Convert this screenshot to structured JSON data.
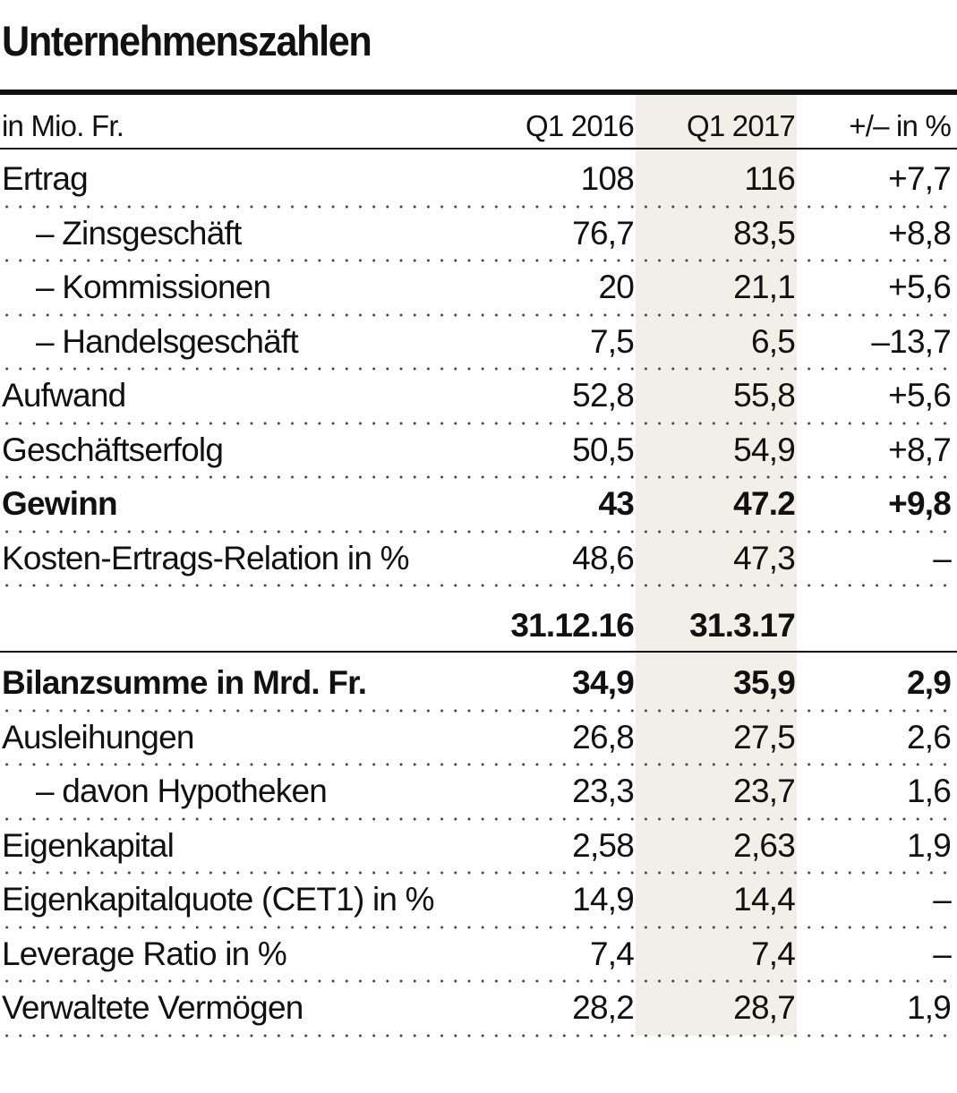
{
  "header": {
    "title": "Unternehmenszahlen"
  },
  "table": {
    "columns": [
      "in Mio. Fr.",
      "Q1 2016",
      "Q1 2017",
      "+/– in %"
    ],
    "rows1": [
      {
        "cells": [
          "Ertrag",
          "108",
          "116",
          "+7,7"
        ]
      },
      {
        "cells": [
          "– Zinsgeschäft",
          "76,7",
          "83,5",
          "+8,8"
        ],
        "indent": true
      },
      {
        "cells": [
          "– Kommissionen",
          "20",
          "21,1",
          "+5,6"
        ],
        "indent": true
      },
      {
        "cells": [
          "– Handelsgeschäft",
          "7,5",
          "6,5",
          "–13,7"
        ],
        "indent": true
      },
      {
        "cells": [
          "Aufwand",
          "52,8",
          "55,8",
          "+5,6"
        ]
      },
      {
        "cells": [
          "Geschäftserfolg",
          "50,5",
          "54,9",
          "+8,7"
        ]
      },
      {
        "cells": [
          "Gewinn",
          "43",
          "47.2",
          "+9,8"
        ],
        "bold": true
      },
      {
        "cells": [
          "Kosten-Ertrags-Relation in %",
          "48,6",
          "47,3",
          "–"
        ]
      }
    ],
    "subheader": [
      "31.12.16",
      "31.3.17"
    ],
    "rows2": [
      {
        "cells": [
          "Bilanzsumme in Mrd. Fr.",
          "34,9",
          "35,9",
          "2,9"
        ],
        "bold": true
      },
      {
        "cells": [
          "Ausleihungen",
          "26,8",
          "27,5",
          "2,6"
        ]
      },
      {
        "cells": [
          "– davon Hypotheken",
          "23,3",
          "23,7",
          "1,6"
        ],
        "indent": true
      },
      {
        "cells": [
          "Eigenkapital",
          "2,58",
          "2,63",
          "1,9"
        ]
      },
      {
        "cells": [
          "Eigenkapitalquote (CET1) in %",
          "14,9",
          "14,4",
          "–"
        ]
      },
      {
        "cells": [
          "Leverage Ratio in %",
          "7,4",
          "7,4",
          "–"
        ]
      },
      {
        "cells": [
          "Verwaltete Vermögen",
          "28,2",
          "28,7",
          "1,9"
        ]
      }
    ]
  }
}
